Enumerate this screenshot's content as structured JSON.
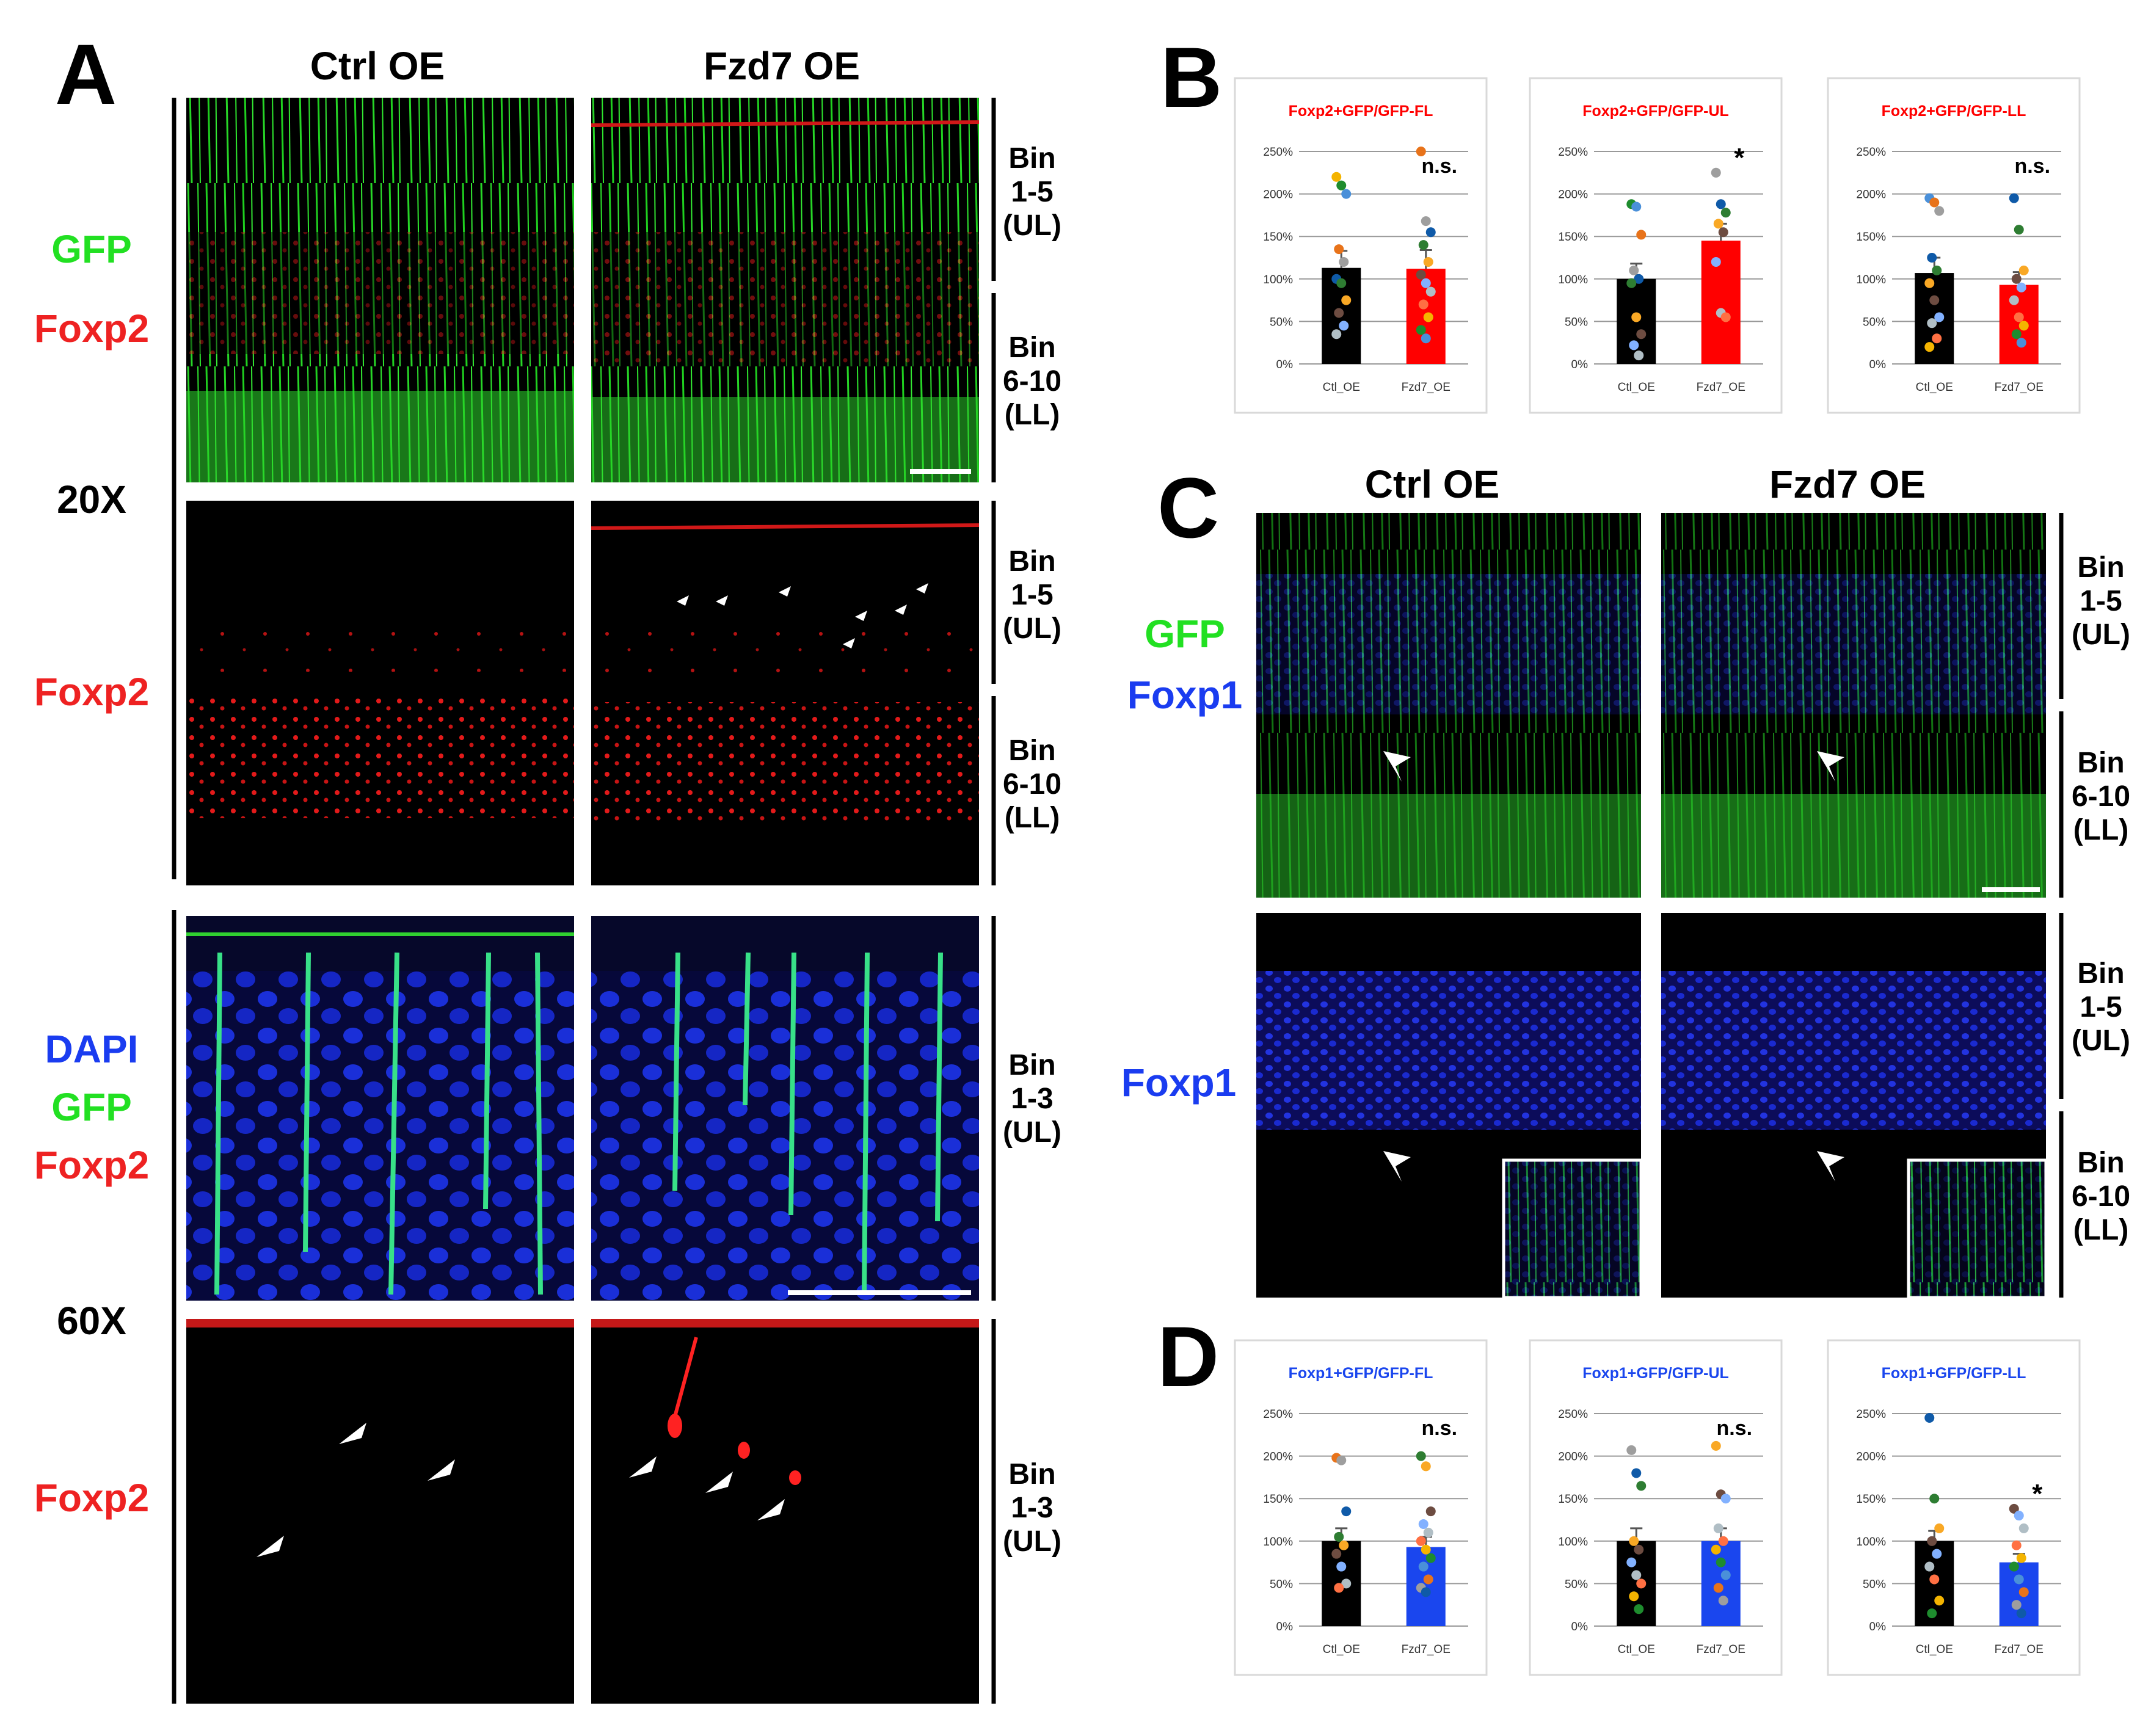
{
  "panel_letters": {
    "a": "A",
    "b": "B",
    "c": "C",
    "d": "D"
  },
  "conditions": {
    "ctrl": "Ctrl OE",
    "fzd7": "Fzd7 OE"
  },
  "magnifications": {
    "low": "20X",
    "high": "60X"
  },
  "channel_labels": {
    "gfp": "GFP",
    "foxp2": "Foxp2",
    "foxp1": "Foxp1",
    "dapi": "DAPI"
  },
  "bin_labels": {
    "bin_word": "Bin",
    "b15": "1-5",
    "b610": "6-10",
    "b13": "1-3",
    "ul": "(UL)",
    "ll": "(LL)"
  },
  "colors": {
    "green": "#22e022",
    "red": "#ee2222",
    "blue": "#1a3cf0",
    "black": "#000000",
    "bar_ctrl": "#000000",
    "bar_fzd7_foxp2": "#ff0000",
    "bar_fzd7_foxp1": "#1a46ee"
  },
  "chart_data": [
    {
      "type": "bar",
      "title": "Foxp2+GFP/GFP-FL",
      "categories": [
        "Ctl_OE",
        "Fzd7_OE"
      ],
      "values": [
        113,
        112
      ],
      "errors": [
        20,
        22
      ],
      "ylim": [
        0,
        250
      ],
      "yticks": [
        "0%",
        "50%",
        "100%",
        "150%",
        "200%",
        "250%"
      ],
      "significance": "n.s.",
      "points": [
        [
          220,
          210,
          200,
          135,
          120,
          100,
          95,
          75,
          60,
          45,
          35
        ],
        [
          250,
          168,
          155,
          140,
          120,
          105,
          95,
          85,
          70,
          55,
          40,
          30
        ]
      ]
    },
    {
      "type": "bar",
      "title": "Foxp2+GFP/GFP-UL",
      "categories": [
        "Ctl_OE",
        "Fzd7_OE"
      ],
      "values": [
        100,
        145
      ],
      "errors": [
        18,
        20
      ],
      "ylim": [
        0,
        250
      ],
      "yticks": [
        "0%",
        "50%",
        "100%",
        "150%",
        "200%",
        "250%"
      ],
      "significance": "*",
      "points": [
        [
          188,
          185,
          152,
          110,
          100,
          95,
          55,
          35,
          22,
          10
        ],
        [
          225,
          188,
          178,
          165,
          155,
          120,
          60,
          55
        ]
      ]
    },
    {
      "type": "bar",
      "title": "Foxp2+GFP/GFP-LL",
      "categories": [
        "Ctl_OE",
        "Fzd7_OE"
      ],
      "values": [
        107,
        93
      ],
      "errors": [
        18,
        15
      ],
      "ylim": [
        0,
        250
      ],
      "yticks": [
        "0%",
        "50%",
        "100%",
        "150%",
        "200%",
        "250%"
      ],
      "significance": "n.s.",
      "points": [
        [
          195,
          190,
          180,
          125,
          110,
          95,
          75,
          55,
          48,
          30,
          20
        ],
        [
          195,
          158,
          110,
          100,
          90,
          75,
          55,
          45,
          35,
          25
        ]
      ]
    },
    {
      "type": "bar",
      "title": "Foxp1+GFP/GFP-FL",
      "categories": [
        "Ctl_OE",
        "Fzd7_OE"
      ],
      "values": [
        100,
        93
      ],
      "errors": [
        15,
        12
      ],
      "ylim": [
        0,
        250
      ],
      "yticks": [
        "0%",
        "50%",
        "100%",
        "150%",
        "200%",
        "250%"
      ],
      "significance": "n.s.",
      "points": [
        [
          198,
          195,
          135,
          105,
          95,
          85,
          70,
          50,
          45
        ],
        [
          200,
          188,
          135,
          120,
          110,
          100,
          90,
          80,
          70,
          55,
          45,
          40
        ]
      ]
    },
    {
      "type": "bar",
      "title": "Foxp1+GFP/GFP-UL",
      "categories": [
        "Ctl_OE",
        "Fzd7_OE"
      ],
      "values": [
        100,
        100
      ],
      "errors": [
        15,
        15
      ],
      "ylim": [
        0,
        250
      ],
      "yticks": [
        "0%",
        "50%",
        "100%",
        "150%",
        "200%",
        "250%"
      ],
      "significance": "n.s.",
      "points": [
        [
          207,
          180,
          165,
          100,
          90,
          75,
          60,
          50,
          35,
          20
        ],
        [
          212,
          155,
          150,
          115,
          100,
          90,
          75,
          60,
          45,
          30
        ]
      ]
    },
    {
      "type": "bar",
      "title": "Foxp1+GFP/GFP-LL",
      "categories": [
        "Ctl_OE",
        "Fzd7_OE"
      ],
      "values": [
        100,
        75
      ],
      "errors": [
        12,
        10
      ],
      "ylim": [
        0,
        250
      ],
      "yticks": [
        "0%",
        "50%",
        "100%",
        "150%",
        "200%",
        "250%"
      ],
      "significance": "*",
      "points": [
        [
          245,
          150,
          115,
          100,
          85,
          70,
          55,
          30,
          15
        ],
        [
          138,
          130,
          115,
          95,
          80,
          70,
          55,
          40,
          25,
          15
        ]
      ]
    }
  ]
}
